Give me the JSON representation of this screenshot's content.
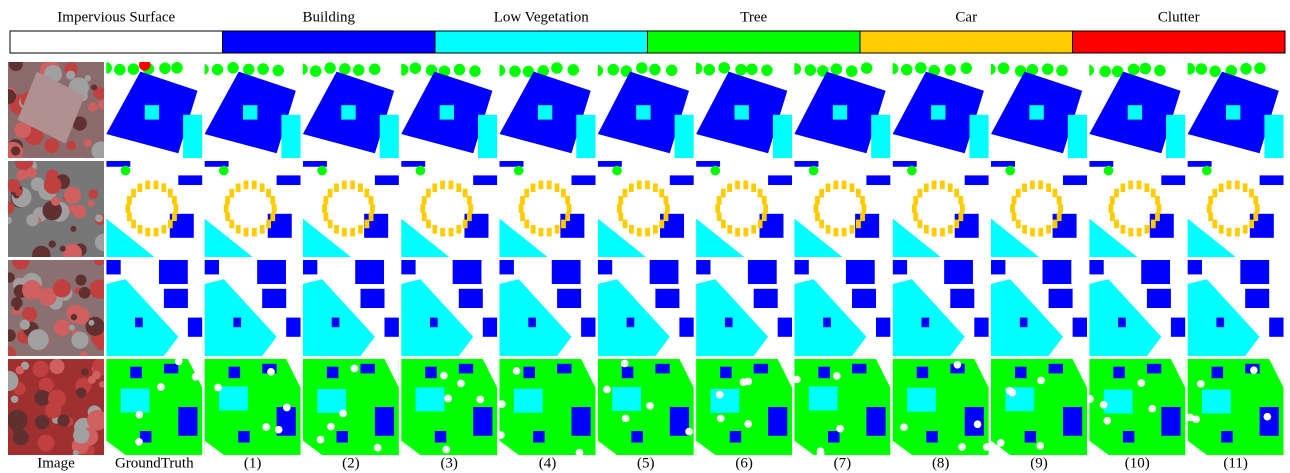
{
  "legend": [
    {
      "label": "Impervious Surface",
      "color": "#ffffff"
    },
    {
      "label": "Building",
      "color": "#0000ff"
    },
    {
      "label": "Low Vegetation",
      "color": "#00ffff"
    },
    {
      "label": "Tree",
      "color": "#00ff00"
    },
    {
      "label": "Car",
      "color": "#ffcc00"
    },
    {
      "label": "Clutter",
      "color": "#ff0000"
    }
  ],
  "columns": [
    "Image",
    "GroundTruth",
    "(1)",
    "(2)",
    "(3)",
    "(4)",
    "(5)",
    "(6)",
    "(7)",
    "(8)",
    "(9)",
    "(10)",
    "(11)"
  ]
}
